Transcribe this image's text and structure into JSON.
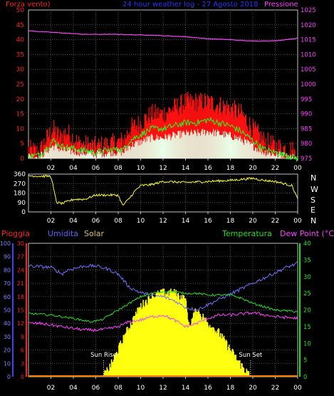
{
  "header": {
    "left_label": "Forza vento)",
    "title": "24 hour weather log - 27 Agosto 2018",
    "right_label": "Pressione"
  },
  "chart_data": [
    {
      "type": "line",
      "x_ticks": [
        "02",
        "04",
        "06",
        "08",
        "10",
        "12",
        "14",
        "16",
        "18",
        "20",
        "22",
        "00"
      ],
      "xlim": [
        0,
        24
      ],
      "ylim_left": [
        0,
        50
      ],
      "y_ticks_left": [
        "0",
        "5",
        "10",
        "15",
        "20",
        "25",
        "30",
        "35",
        "40",
        "45",
        "50"
      ],
      "ylim_right": [
        975,
        1025
      ],
      "y_ticks_right": [
        "975",
        "980",
        "985",
        "990",
        "995",
        "1000",
        "1005",
        "1010",
        "1015",
        "1020",
        "1025"
      ],
      "gust_keypoints": [
        [
          0,
          3
        ],
        [
          1,
          2
        ],
        [
          1.5,
          6
        ],
        [
          2.2,
          10
        ],
        [
          2.8,
          7
        ],
        [
          3.4,
          9
        ],
        [
          4.5,
          5
        ],
        [
          6,
          4
        ],
        [
          7.5,
          5
        ],
        [
          8.5,
          6
        ],
        [
          9,
          10
        ],
        [
          10,
          12
        ],
        [
          11,
          15
        ],
        [
          12,
          15
        ],
        [
          13,
          17
        ],
        [
          14,
          19
        ],
        [
          15,
          19
        ],
        [
          16,
          19
        ],
        [
          17,
          18
        ],
        [
          18,
          17
        ],
        [
          19,
          15
        ],
        [
          20,
          10
        ],
        [
          21,
          6
        ],
        [
          22,
          4
        ],
        [
          23.5,
          3
        ],
        [
          24,
          0
        ]
      ],
      "avg_keypoints": [
        [
          0,
          1
        ],
        [
          1,
          1
        ],
        [
          1.5,
          3
        ],
        [
          2.2,
          6
        ],
        [
          3,
          4
        ],
        [
          4.5,
          3
        ],
        [
          6,
          2
        ],
        [
          7.5,
          3
        ],
        [
          8.5,
          3
        ],
        [
          9,
          6
        ],
        [
          10,
          8
        ],
        [
          11,
          10
        ],
        [
          12,
          10
        ],
        [
          13,
          11
        ],
        [
          14,
          12
        ],
        [
          15,
          12
        ],
        [
          16,
          13
        ],
        [
          17,
          12
        ],
        [
          18,
          11
        ],
        [
          19,
          9
        ],
        [
          20,
          6
        ],
        [
          21,
          3
        ],
        [
          22,
          2
        ],
        [
          24,
          0
        ]
      ],
      "pressure_keypoints": [
        [
          0,
          1018
        ],
        [
          2,
          1017.5
        ],
        [
          5,
          1016.8
        ],
        [
          8,
          1016.8
        ],
        [
          11,
          1016.5
        ],
        [
          14,
          1016
        ],
        [
          16,
          1015.3
        ],
        [
          18,
          1015
        ],
        [
          20,
          1014.5
        ],
        [
          22,
          1014.6
        ],
        [
          24,
          1015.5
        ]
      ]
    },
    {
      "type": "line",
      "right_labels": [
        "N",
        "W",
        "S",
        "E",
        "N"
      ],
      "x_ticks": [
        "02",
        "04",
        "06",
        "08",
        "10",
        "12",
        "14",
        "16",
        "18",
        "20",
        "22",
        "00"
      ],
      "xlim": [
        0,
        24
      ],
      "ylim": [
        0,
        360
      ],
      "y_ticks": [
        "0",
        "90",
        "180",
        "270",
        "360"
      ],
      "direction_keypoints": [
        [
          0,
          345
        ],
        [
          1,
          340
        ],
        [
          2,
          340
        ],
        [
          2.5,
          90
        ],
        [
          3,
          80
        ],
        [
          4,
          120
        ],
        [
          5,
          120
        ],
        [
          6,
          160
        ],
        [
          7,
          160
        ],
        [
          8,
          160
        ],
        [
          8.4,
          60
        ],
        [
          9,
          130
        ],
        [
          9.5,
          200
        ],
        [
          10,
          250
        ],
        [
          11,
          260
        ],
        [
          12,
          290
        ],
        [
          14,
          280
        ],
        [
          16,
          290
        ],
        [
          18,
          300
        ],
        [
          20,
          320
        ],
        [
          21,
          300
        ],
        [
          22,
          290
        ],
        [
          23.5,
          250
        ],
        [
          24,
          120
        ]
      ]
    },
    {
      "type": "line",
      "labels": {
        "rain": "Pioggia",
        "humidity": "Umidita",
        "solar": "Solar",
        "temperature": "Temperatura",
        "dewpoint": "Dew Point (°C)"
      },
      "x_ticks": [
        "02",
        "04",
        "06",
        "08",
        "10",
        "12",
        "14",
        "16",
        "18",
        "20",
        "22",
        "00"
      ],
      "xlim": [
        0,
        24
      ],
      "y_ticks_humidity": [
        "0",
        "10",
        "20",
        "30",
        "40",
        "50",
        "60",
        "70",
        "80",
        "90",
        "100"
      ],
      "y_ticks_rain": [
        "0",
        "3",
        "6",
        "9",
        "12",
        "15",
        "18",
        "21",
        "24",
        "27",
        "30"
      ],
      "y_ticks_temperature": [
        "0",
        "5",
        "10",
        "15",
        "20",
        "25",
        "30",
        "35",
        "40"
      ],
      "sunrise_label": "Sun Rise",
      "sunset_label": "Sun Set",
      "sunrise_hour": 6.7,
      "sunset_hour": 19.8,
      "humidity_keypoints": [
        [
          0,
          83
        ],
        [
          2,
          82
        ],
        [
          3,
          77
        ],
        [
          3.5,
          80
        ],
        [
          5,
          83
        ],
        [
          6,
          83
        ],
        [
          7,
          81
        ],
        [
          8,
          77
        ],
        [
          9,
          67
        ],
        [
          10,
          63
        ],
        [
          11,
          61
        ],
        [
          12,
          60
        ],
        [
          13,
          57
        ],
        [
          14,
          52
        ],
        [
          15,
          50
        ],
        [
          16,
          54
        ],
        [
          17,
          58
        ],
        [
          18,
          62
        ],
        [
          19,
          66
        ],
        [
          20,
          70
        ],
        [
          21,
          74
        ],
        [
          22,
          78
        ],
        [
          23,
          82
        ],
        [
          24,
          85
        ]
      ],
      "temperature_keypoints": [
        [
          0,
          19
        ],
        [
          2,
          18.5
        ],
        [
          4,
          17.5
        ],
        [
          5.5,
          16.5
        ],
        [
          6.5,
          17
        ],
        [
          7,
          18
        ],
        [
          8,
          20
        ],
        [
          9,
          22
        ],
        [
          10,
          24
        ],
        [
          11,
          25
        ],
        [
          12,
          25.5
        ],
        [
          13,
          25.5
        ],
        [
          14,
          25
        ],
        [
          15,
          25
        ],
        [
          16,
          24.5
        ],
        [
          17,
          24.5
        ],
        [
          18,
          24.5
        ],
        [
          19,
          23.5
        ],
        [
          20,
          22
        ],
        [
          21,
          21
        ],
        [
          22,
          20
        ],
        [
          24,
          19.5
        ]
      ],
      "dewpoint_keypoints": [
        [
          0,
          16
        ],
        [
          1,
          16
        ],
        [
          2,
          15.5
        ],
        [
          3,
          15
        ],
        [
          4,
          14.5
        ],
        [
          5,
          14
        ],
        [
          6,
          14
        ],
        [
          7,
          14.3
        ],
        [
          8,
          15
        ],
        [
          9,
          16.5
        ],
        [
          10,
          17
        ],
        [
          11,
          18
        ],
        [
          12,
          18.5
        ],
        [
          13,
          17
        ],
        [
          14,
          15
        ],
        [
          15,
          16
        ],
        [
          16,
          17.5
        ],
        [
          17,
          18.5
        ],
        [
          18,
          18.5
        ],
        [
          19,
          18.8
        ],
        [
          20,
          19.2
        ],
        [
          22,
          18
        ],
        [
          24,
          17.5
        ]
      ],
      "solar_keypoints": [
        [
          6.7,
          0
        ],
        [
          7.3,
          3
        ],
        [
          8,
          8
        ],
        [
          9,
          15
        ],
        [
          10,
          21
        ],
        [
          11,
          24
        ],
        [
          12,
          25
        ],
        [
          13,
          25
        ],
        [
          14,
          23
        ],
        [
          14.3,
          15
        ],
        [
          15,
          20
        ],
        [
          16,
          16
        ],
        [
          17,
          13
        ],
        [
          18,
          8
        ],
        [
          18.6,
          5
        ],
        [
          19.3,
          2
        ],
        [
          19.8,
          0
        ]
      ]
    }
  ]
}
